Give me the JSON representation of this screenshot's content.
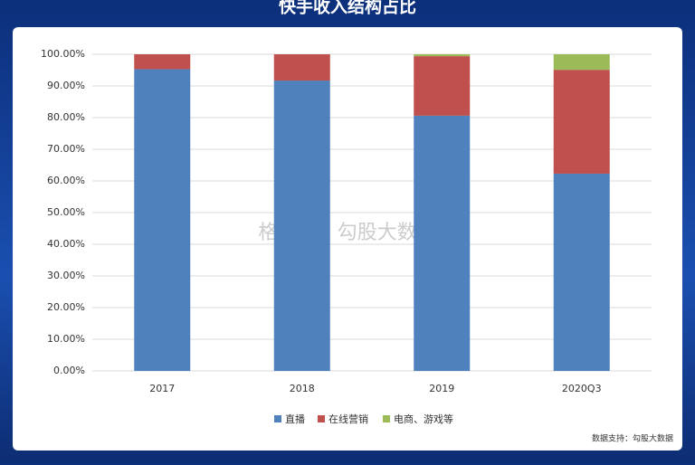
{
  "chart_data": {
    "type": "stacked_bar",
    "title": "快手收入结构占比",
    "categories": [
      "2017",
      "2018",
      "2019",
      "2020Q3"
    ],
    "series": [
      {
        "name": "直播",
        "color": "#4f81bd",
        "values": [
          95.3,
          91.7,
          80.6,
          62.3
        ]
      },
      {
        "name": "在线营销",
        "color": "#c0504d",
        "values": [
          4.7,
          8.3,
          18.8,
          32.8
        ]
      },
      {
        "name": "电商、游戏等",
        "color": "#9bbb59",
        "values": [
          0,
          0,
          0.6,
          4.9
        ]
      }
    ],
    "ylim": [
      0,
      100
    ],
    "yticks": [
      {
        "value": 0,
        "label": "0.00%"
      },
      {
        "value": 10,
        "label": "10.00%"
      },
      {
        "value": 20,
        "label": "20.00%"
      },
      {
        "value": 30,
        "label": "30.00%"
      },
      {
        "value": 40,
        "label": "40.00%"
      },
      {
        "value": 50,
        "label": "50.00%"
      },
      {
        "value": 60,
        "label": "60.00%"
      },
      {
        "value": 70,
        "label": "70.00%"
      },
      {
        "value": 80,
        "label": "80.00%"
      },
      {
        "value": 90,
        "label": "90.00%"
      },
      {
        "value": 100,
        "label": "100.00%"
      }
    ],
    "grid": true,
    "legend": "bottom",
    "watermark": "格隆汇 | 勾股大数据",
    "source": "数据支持：勾股大数据"
  }
}
